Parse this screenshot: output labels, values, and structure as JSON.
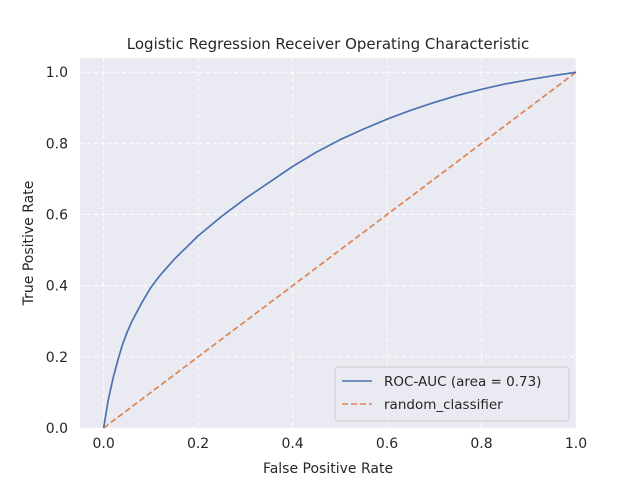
{
  "chart_data": {
    "type": "line",
    "title": "Logistic Regression Receiver Operating Characteristic",
    "xlabel": "False Positive Rate",
    "ylabel": "True Positive Rate",
    "xlim": [
      -0.05,
      1.0
    ],
    "ylim": [
      0.0,
      1.04
    ],
    "xticks": [
      0.0,
      0.2,
      0.4,
      0.6,
      0.8,
      1.0
    ],
    "xtick_labels": [
      "0.0",
      "0.2",
      "0.4",
      "0.6",
      "0.8",
      "1.0"
    ],
    "yticks": [
      0.0,
      0.2,
      0.4,
      0.6,
      0.8,
      1.0
    ],
    "ytick_labels": [
      "0.0",
      "0.2",
      "0.4",
      "0.6",
      "0.8",
      "1.0"
    ],
    "grid": true,
    "legend_position": "lower-right",
    "series": [
      {
        "name": "ROC-AUC (area = 0.73)",
        "color": "#4c72b0",
        "style": "solid",
        "x": [
          0.0,
          0.005,
          0.01,
          0.02,
          0.03,
          0.04,
          0.05,
          0.06,
          0.08,
          0.1,
          0.12,
          0.15,
          0.2,
          0.25,
          0.3,
          0.35,
          0.4,
          0.45,
          0.5,
          0.55,
          0.6,
          0.65,
          0.7,
          0.75,
          0.8,
          0.85,
          0.9,
          0.95,
          1.0
        ],
        "y": [
          0.0,
          0.04,
          0.08,
          0.14,
          0.19,
          0.235,
          0.27,
          0.3,
          0.35,
          0.395,
          0.43,
          0.475,
          0.54,
          0.595,
          0.645,
          0.69,
          0.735,
          0.775,
          0.81,
          0.84,
          0.868,
          0.893,
          0.915,
          0.935,
          0.952,
          0.967,
          0.979,
          0.99,
          1.0
        ]
      },
      {
        "name": "random_classifier",
        "color": "#dd8452",
        "style": "dashed",
        "x": [
          0.0,
          1.0
        ],
        "y": [
          0.0,
          1.0
        ]
      }
    ]
  }
}
